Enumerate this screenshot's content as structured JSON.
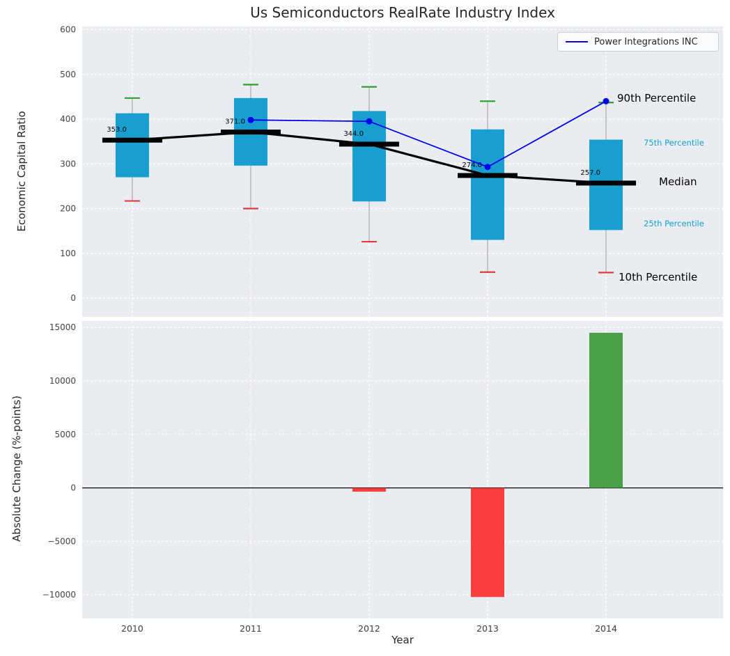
{
  "title": "Us Semiconductors RealRate Industry Index",
  "axes": {
    "top_ylabel": "Economic Capital Ratio",
    "bottom_ylabel": "Absolute Change (%-points)",
    "xlabel": "Year"
  },
  "legend": {
    "label": "Power Integrations INC"
  },
  "annotations": [
    {
      "id": "ann-90",
      "text": "90th Percentile",
      "color": "#000000"
    },
    {
      "id": "ann-75",
      "text": "75th Percentile",
      "color": "#189fd0"
    },
    {
      "id": "ann-med",
      "text": "Median",
      "color": "#000000"
    },
    {
      "id": "ann-25",
      "text": "25th Percentile",
      "color": "#189fd0"
    },
    {
      "id": "ann-10",
      "text": "10th Percentile",
      "color": "#000000"
    }
  ],
  "colors": {
    "plot_bg": "#e9edf2",
    "grid": "#ffffff",
    "box": "#189fd0",
    "median": "#000000",
    "cap_high": "#2ca02c",
    "cap_low": "#e23b3b",
    "whisker": "#9a9a9a",
    "company_line": "#0000ee",
    "bar_positive": "#49a048",
    "bar_negative": "#fa3e3e",
    "zero_line": "#000000"
  },
  "chart_data": [
    {
      "type": "boxplot",
      "title": "Us Semiconductors RealRate Industry Index",
      "ylabel": "Economic Capital Ratio",
      "xlabel": "Year",
      "categories": [
        2010,
        2011,
        2012,
        2013,
        2014
      ],
      "xtick_labels": [
        "2010",
        "2011",
        "2012",
        "2013",
        "2014"
      ],
      "ylim": [
        0,
        600
      ],
      "ytick_values": [
        0,
        100,
        200,
        300,
        400,
        500,
        600
      ],
      "ytick_labels": [
        "0",
        "100",
        "200",
        "300",
        "400",
        "500",
        "600"
      ],
      "grid": true,
      "legend_position": "upper right",
      "series": [
        {
          "name": "90th Percentile",
          "values": [
            447,
            477,
            472,
            440,
            437
          ]
        },
        {
          "name": "75th Percentile",
          "values": [
            413,
            447,
            418,
            377,
            354
          ]
        },
        {
          "name": "Median",
          "values": [
            353,
            371,
            344,
            274,
            257
          ]
        },
        {
          "name": "25th Percentile",
          "values": [
            270,
            296,
            216,
            130,
            152
          ]
        },
        {
          "name": "10th Percentile",
          "values": [
            217,
            200,
            126,
            58,
            57
          ]
        }
      ],
      "median_labels": [
        "353.0",
        "371.0",
        "344.0",
        "274.0",
        "257.0"
      ],
      "company_series": {
        "name": "Power Integrations INC",
        "categories": [
          2011,
          2012,
          2013,
          2014
        ],
        "values": [
          398,
          395,
          293,
          440
        ]
      }
    },
    {
      "type": "bar",
      "ylabel": "Absolute Change (%-points)",
      "xlabel": "Year",
      "categories": [
        2010,
        2011,
        2012,
        2013,
        2014
      ],
      "xtick_labels": [
        "2010",
        "2011",
        "2012",
        "2013",
        "2014"
      ],
      "values": [
        null,
        null,
        -350,
        -10200,
        14500
      ],
      "ylim": [
        -12200,
        15600
      ],
      "ytick_values": [
        -10000,
        -5000,
        0,
        5000,
        10000,
        15000
      ],
      "ytick_labels": [
        "−10000",
        "−5000",
        "0",
        "5000",
        "10000",
        "15000"
      ],
      "grid": true
    }
  ]
}
